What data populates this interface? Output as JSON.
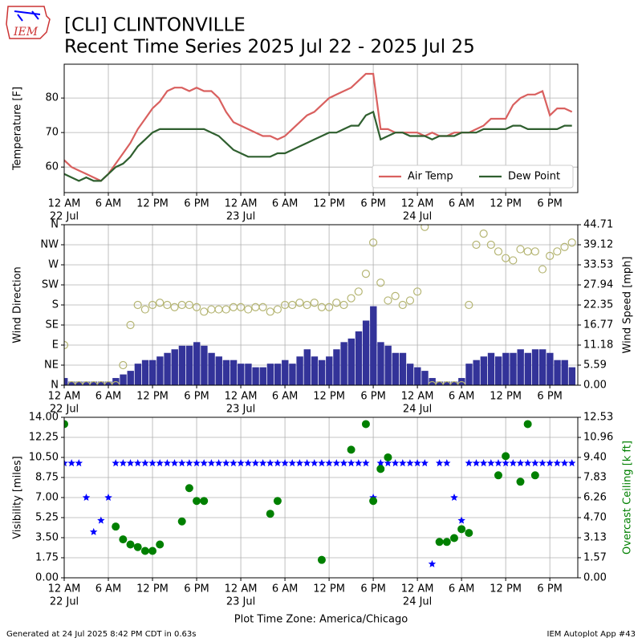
{
  "logo": "IEM",
  "chart_data": {
    "type": "multi",
    "title": "[CLI] CLINTONVILLE",
    "subtitle": "Recent Time Series 2025 Jul 22 - 2025 Jul 25",
    "xlabel": "Plot Time Zone: America/Chicago",
    "footer_left": "Generated at 24 Jul 2025 8:42 PM CDT in 0.63s",
    "footer_right": "IEM Autoplot App #43",
    "xlim": [
      "2025-07-22 00:00",
      "2025-07-24 21:48"
    ],
    "xticks": [
      {
        "value": "2025-07-22 00:00",
        "label": "12 AM",
        "date": "22 Jul"
      },
      {
        "value": "2025-07-22 06:00",
        "label": "6 AM"
      },
      {
        "value": "2025-07-22 12:00",
        "label": "12 PM"
      },
      {
        "value": "2025-07-22 18:00",
        "label": "6 PM"
      },
      {
        "value": "2025-07-23 00:00",
        "label": "12 AM",
        "date": "23 Jul"
      },
      {
        "value": "2025-07-23 06:00",
        "label": "6 AM"
      },
      {
        "value": "2025-07-23 12:00",
        "label": "12 PM"
      },
      {
        "value": "2025-07-23 18:00",
        "label": "6 PM"
      },
      {
        "value": "2025-07-24 00:00",
        "label": "12 AM",
        "date": "24 Jul"
      },
      {
        "value": "2025-07-24 06:00",
        "label": "6 AM"
      },
      {
        "value": "2025-07-24 12:00",
        "label": "12 PM"
      },
      {
        "value": "2025-07-24 18:00",
        "label": "6 PM"
      }
    ],
    "x": [
      "2025-07-22 00:00",
      "2025-07-22 01:00",
      "2025-07-22 02:00",
      "2025-07-22 03:00",
      "2025-07-22 04:00",
      "2025-07-22 05:00",
      "2025-07-22 06:00",
      "2025-07-22 07:00",
      "2025-07-22 08:00",
      "2025-07-22 09:00",
      "2025-07-22 10:00",
      "2025-07-22 11:00",
      "2025-07-22 12:00",
      "2025-07-22 13:00",
      "2025-07-22 14:00",
      "2025-07-22 15:00",
      "2025-07-22 16:00",
      "2025-07-22 17:00",
      "2025-07-22 18:00",
      "2025-07-22 19:00",
      "2025-07-22 20:00",
      "2025-07-22 21:00",
      "2025-07-22 22:00",
      "2025-07-22 23:00",
      "2025-07-23 00:00",
      "2025-07-23 01:00",
      "2025-07-23 02:00",
      "2025-07-23 03:00",
      "2025-07-23 04:00",
      "2025-07-23 05:00",
      "2025-07-23 06:00",
      "2025-07-23 07:00",
      "2025-07-23 08:00",
      "2025-07-23 09:00",
      "2025-07-23 10:00",
      "2025-07-23 11:00",
      "2025-07-23 12:00",
      "2025-07-23 13:00",
      "2025-07-23 14:00",
      "2025-07-23 15:00",
      "2025-07-23 16:00",
      "2025-07-23 17:00",
      "2025-07-23 18:00",
      "2025-07-23 19:00",
      "2025-07-23 20:00",
      "2025-07-23 21:00",
      "2025-07-23 22:00",
      "2025-07-23 23:00",
      "2025-07-24 00:00",
      "2025-07-24 01:00",
      "2025-07-24 02:00",
      "2025-07-24 03:00",
      "2025-07-24 04:00",
      "2025-07-24 05:00",
      "2025-07-24 06:00",
      "2025-07-24 07:00",
      "2025-07-24 08:00",
      "2025-07-24 09:00",
      "2025-07-24 10:00",
      "2025-07-24 11:00",
      "2025-07-24 12:00",
      "2025-07-24 13:00",
      "2025-07-24 14:00",
      "2025-07-24 15:00",
      "2025-07-24 16:00",
      "2025-07-24 17:00",
      "2025-07-24 18:00",
      "2025-07-24 19:00",
      "2025-07-24 20:00",
      "2025-07-24 21:00"
    ],
    "panels": [
      {
        "type": "line",
        "ylabel": "Temperature [F]",
        "ylim": [
          52.6,
          89.8
        ],
        "yticks": [
          60,
          70,
          80
        ],
        "grid": true,
        "legend": "lower right",
        "series": [
          {
            "name": "Air Temp",
            "color": "#d9605f",
            "kind": "line",
            "values": [
              62,
              60,
              59,
              58,
              57,
              56,
              58,
              61,
              64,
              67,
              71,
              74,
              77,
              79,
              82,
              83,
              83,
              82,
              83,
              82,
              82,
              80,
              76,
              73,
              72,
              71,
              70,
              69,
              69,
              68,
              69,
              71,
              73,
              75,
              76,
              78,
              80,
              81,
              82,
              83,
              85,
              87,
              87,
              71,
              71,
              70,
              70,
              70,
              70,
              69,
              70,
              69,
              69,
              70,
              70,
              70,
              71,
              72,
              74,
              74,
              74,
              78,
              80,
              81,
              81,
              82,
              75,
              77,
              77,
              76
            ]
          },
          {
            "name": "Dew Point",
            "color": "#2f5f2f",
            "kind": "line",
            "values": [
              58,
              57,
              56,
              57,
              56,
              56,
              58,
              60,
              61,
              63,
              66,
              68,
              70,
              71,
              71,
              71,
              71,
              71,
              71,
              71,
              70,
              69,
              67,
              65,
              64,
              63,
              63,
              63,
              63,
              64,
              64,
              65,
              66,
              67,
              68,
              69,
              70,
              70,
              71,
              72,
              72,
              75,
              76,
              68,
              69,
              70,
              70,
              69,
              69,
              69,
              68,
              69,
              69,
              69,
              70,
              70,
              70,
              71,
              71,
              71,
              71,
              72,
              72,
              71,
              71,
              71,
              71,
              71,
              72,
              72
            ]
          }
        ]
      },
      {
        "type": "bar-scatter",
        "ylabel": "Wind Direction",
        "ylim": [
          0,
          360
        ],
        "yticks": [
          {
            "value": 0,
            "label": "N"
          },
          {
            "value": 45,
            "label": "NE"
          },
          {
            "value": 90,
            "label": "E"
          },
          {
            "value": 135,
            "label": "SE"
          },
          {
            "value": 180,
            "label": "S"
          },
          {
            "value": 225,
            "label": "SW"
          },
          {
            "value": 270,
            "label": "W"
          },
          {
            "value": 315,
            "label": "NW"
          },
          {
            "value": 360,
            "label": "N"
          }
        ],
        "y2label": "Wind Speed [mph]",
        "y2lim": [
          0,
          44.71
        ],
        "y2ticks": [
          {
            "value": 0,
            "label": "0.00"
          },
          5.59,
          11.18,
          16.77,
          22.35,
          27.94,
          33.53,
          39.12,
          44.71
        ],
        "grid": true,
        "series": [
          {
            "color": "#333399",
            "kind": "bar",
            "axis": "y2",
            "values": [
              2,
              1,
              1,
              1,
              1,
              1,
              1,
              2,
              3,
              4,
              6,
              7,
              7,
              8,
              9,
              10,
              11,
              11,
              12,
              11,
              9,
              8,
              7,
              7,
              6,
              6,
              5,
              5,
              6,
              6,
              7,
              6,
              8,
              10,
              8,
              7,
              8,
              10,
              12,
              13,
              15,
              18,
              22,
              12,
              11,
              9,
              9,
              6,
              5,
              4,
              2,
              1,
              1,
              1,
              2,
              6,
              7,
              8,
              9,
              8,
              9,
              9,
              10,
              9,
              10,
              10,
              9,
              7,
              7,
              5
            ]
          },
          {
            "color": "#b5b573",
            "kind": "scatter",
            "values": [
              90,
              0,
              0,
              0,
              0,
              0,
              0,
              0,
              45,
              135,
              180,
              170,
              180,
              185,
              180,
              175,
              180,
              180,
              175,
              165,
              170,
              170,
              170,
              175,
              175,
              170,
              175,
              175,
              165,
              170,
              180,
              180,
              185,
              180,
              185,
              175,
              175,
              185,
              180,
              195,
              210,
              250,
              320,
              230,
              190,
              200,
              180,
              190,
              210,
              355,
              0,
              0,
              0,
              0,
              0,
              180,
              315,
              340,
              315,
              300,
              285,
              280,
              305,
              300,
              300,
              260,
              290,
              300,
              310,
              320
            ]
          }
        ]
      },
      {
        "type": "scatter",
        "ylabel": "Visibility [miles]",
        "ylim": [
          0,
          14
        ],
        "yticks": [
          {
            "value": 0,
            "label": "0.00"
          },
          1.75,
          {
            "value": 3.5,
            "label": "3.50"
          },
          5.25,
          {
            "value": 7,
            "label": "7.00"
          },
          8.75,
          {
            "value": 10.5,
            "label": "10.50"
          },
          12.25,
          {
            "value": 14,
            "label": "14.00"
          }
        ],
        "y2label": "Overcast Ceiling [k ft]",
        "y2color": "#008000",
        "y2lim": [
          0,
          12.53
        ],
        "y2ticks": [
          {
            "value": 0,
            "label": "0.00"
          },
          1.57,
          3.13,
          {
            "value": 4.7,
            "label": "4.70"
          },
          6.26,
          7.83,
          {
            "value": 9.4,
            "label": "9.40"
          },
          10.96,
          12.53
        ],
        "grid": true,
        "series": [
          {
            "color": "#0000ff",
            "kind": "star",
            "values": [
              10,
              10,
              10,
              7,
              4,
              5,
              7,
              10,
              10,
              10,
              10,
              10,
              10,
              10,
              10,
              10,
              10,
              10,
              10,
              10,
              10,
              10,
              10,
              10,
              10,
              10,
              10,
              10,
              10,
              10,
              10,
              10,
              10,
              10,
              10,
              10,
              10,
              10,
              10,
              10,
              10,
              10,
              7,
              10,
              10,
              10,
              10,
              10,
              10,
              10,
              1.2,
              10,
              10,
              7,
              5,
              10,
              10,
              10,
              10,
              10,
              10,
              10,
              10,
              10,
              10,
              10,
              10,
              10,
              10,
              10
            ]
          },
          {
            "color": "#008000",
            "kind": "dot",
            "axis": "y2",
            "values": [
              12,
              null,
              null,
              null,
              null,
              null,
              null,
              4,
              3,
              2.6,
              2.4,
              2.1,
              2.1,
              2.6,
              null,
              null,
              4.4,
              7,
              6,
              6,
              null,
              null,
              null,
              null,
              null,
              null,
              null,
              null,
              5,
              6,
              null,
              null,
              null,
              null,
              null,
              1.4,
              null,
              null,
              null,
              10,
              null,
              12,
              6,
              8.5,
              9.4,
              null,
              null,
              null,
              null,
              null,
              null,
              2.8,
              2.8,
              3.1,
              3.8,
              3.5,
              null,
              null,
              null,
              8,
              9.5,
              null,
              7.5,
              12,
              8,
              null,
              null,
              null,
              null,
              null
            ]
          }
        ]
      }
    ]
  }
}
